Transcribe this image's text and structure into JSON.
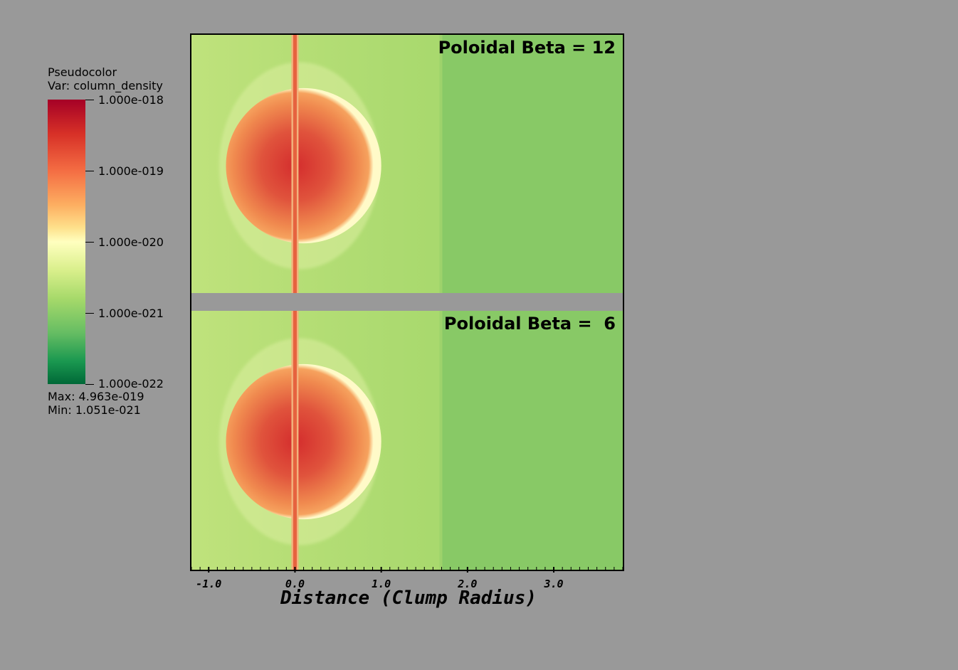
{
  "legend": {
    "title": "Pseudocolor",
    "var": "Var: column_density",
    "max": "Max:  4.963e-019",
    "min": "Min:  1.051e-021",
    "labels": [
      "1.000e-018",
      "1.000e-019",
      "1.000e-020",
      "1.000e-021",
      "1.000e-022"
    ]
  },
  "chart_data": {
    "type": "heatmap",
    "colormap": "RdYlGn_r",
    "variable": "column_density",
    "scale": "log",
    "range": [
      1e-22,
      1e-18
    ],
    "data_max": 4.963e-19,
    "data_min": 1.051e-21,
    "xlabel": "Distance (Clump Radius)",
    "xlim": [
      -1.2,
      3.8
    ],
    "x_ticks": [
      -1.0,
      0.0,
      1.0,
      2.0,
      3.0
    ],
    "x_tick_labels": [
      "-1.0",
      "0.0",
      "1.0",
      "2.0",
      "3.0"
    ],
    "panels": [
      {
        "label": "Poloidal Beta = 12",
        "beta": 12
      },
      {
        "label": "Poloidal Beta =  6",
        "beta": 6
      }
    ],
    "colors": {
      "background_left": "#bfe27c",
      "background_mid": "#a9d96e",
      "background_right": "#88c966",
      "clump_core": "#d42d2d",
      "clump_edge": "#f6a25e",
      "rim": "#fffac8"
    }
  }
}
